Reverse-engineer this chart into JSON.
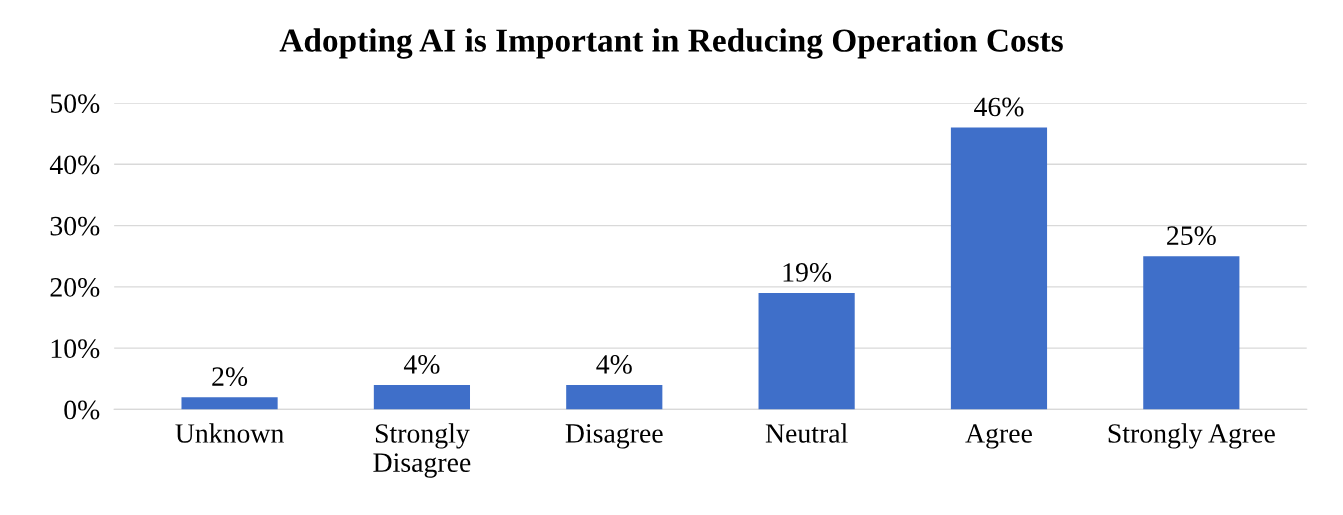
{
  "chart_data": {
    "type": "bar",
    "title": "Adopting AI is Important in Reducing Operation Costs",
    "categories": [
      "Unknown",
      "Strongly\nDisagree",
      "Disagree",
      "Neutral",
      "Agree",
      "Strongly Agree"
    ],
    "values": [
      2,
      4,
      4,
      19,
      46,
      25
    ],
    "value_labels": [
      "2%",
      "4%",
      "4%",
      "19%",
      "46%",
      "25%"
    ],
    "color": "#3f6fc9",
    "ylim": [
      0,
      50
    ],
    "yticks": [
      {
        "value": 0,
        "label": "0%"
      },
      {
        "value": 10,
        "label": "10%"
      },
      {
        "value": 20,
        "label": "20%"
      },
      {
        "value": 30,
        "label": "30%"
      },
      {
        "value": 40,
        "label": "40%"
      },
      {
        "value": 50,
        "label": "50%"
      }
    ],
    "grid": "y"
  }
}
